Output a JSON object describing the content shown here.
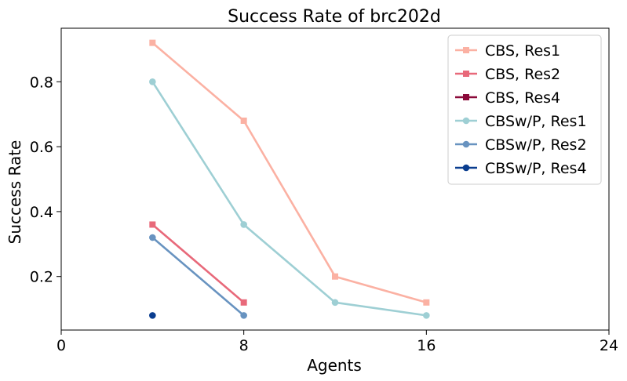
{
  "chart_data": {
    "type": "line",
    "title": "Success Rate of brc202d",
    "xlabel": "Agents",
    "ylabel": "Success Rate",
    "xlim": [
      0,
      24
    ],
    "ylim": [
      0.035,
      0.965
    ],
    "xticks": [
      0,
      8,
      16,
      24
    ],
    "yticks": [
      0.2,
      0.4,
      0.6,
      0.8
    ],
    "xtick_labels": [
      "0",
      "8",
      "16",
      "24"
    ],
    "ytick_labels": [
      "0.2",
      "0.4",
      "0.6",
      "0.8"
    ],
    "grid": false,
    "legend_position": "top-right",
    "series": [
      {
        "name": "CBS, Res1",
        "color": "#fbb1a3",
        "marker": "square",
        "x": [
          4,
          8,
          12,
          16
        ],
        "y": [
          0.92,
          0.68,
          0.2,
          0.12
        ]
      },
      {
        "name": "CBS, Res2",
        "color": "#e8697a",
        "marker": "square",
        "x": [
          4,
          8
        ],
        "y": [
          0.36,
          0.12
        ]
      },
      {
        "name": "CBS, Res4",
        "color": "#8b0a3a",
        "marker": "square",
        "x": [],
        "y": []
      },
      {
        "name": "CBSw/P, Res1",
        "color": "#9ecfd4",
        "marker": "circle",
        "x": [
          4,
          8,
          12,
          16
        ],
        "y": [
          0.8,
          0.36,
          0.12,
          0.08
        ]
      },
      {
        "name": "CBSw/P, Res2",
        "color": "#6893c0",
        "marker": "circle",
        "x": [
          4,
          8
        ],
        "y": [
          0.32,
          0.08
        ]
      },
      {
        "name": "CBSw/P, Res4",
        "color": "#0a3d8f",
        "marker": "circle",
        "x": [
          4
        ],
        "y": [
          0.08
        ]
      }
    ]
  }
}
